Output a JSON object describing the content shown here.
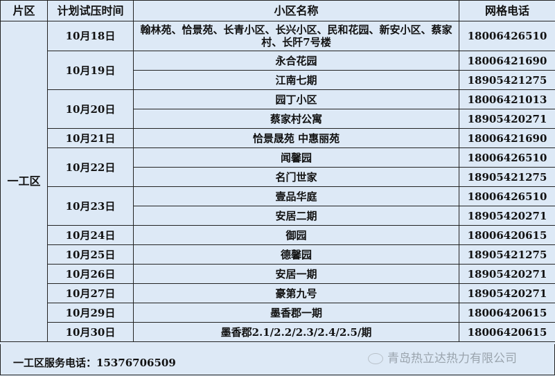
{
  "headers": {
    "zone": "片区",
    "date": "计划试压时间",
    "community": "小区名称",
    "phone": "网格电话"
  },
  "zone": "一工区",
  "groups": [
    {
      "date": "10月18日",
      "rows": [
        {
          "community": "翰林苑、恰景苑、长青小区、长兴小区、民和花园、新安小区、蔡家村、长阡7号楼",
          "phone": "18006426510"
        }
      ]
    },
    {
      "date": "10月19日",
      "rows": [
        {
          "community": "永合花园",
          "phone": "18006421690"
        },
        {
          "community": "江南七期",
          "phone": "18905421275"
        }
      ]
    },
    {
      "date": "10月20日",
      "rows": [
        {
          "community": "园丁小区",
          "phone": "18006421013"
        },
        {
          "community": "蔡家村公寓",
          "phone": "18905420271"
        }
      ]
    },
    {
      "date": "10月21日",
      "rows": [
        {
          "community": "恰景晟苑 中惠丽苑",
          "phone": "18006421690"
        }
      ]
    },
    {
      "date": "10月22日",
      "rows": [
        {
          "community": "闻馨园",
          "phone": "18006426510"
        },
        {
          "community": "名门世家",
          "phone": "18905421275"
        }
      ]
    },
    {
      "date": "10月23日",
      "rows": [
        {
          "community": "壹品华庭",
          "phone": "18006426510"
        },
        {
          "community": "安居二期",
          "phone": "18905420271"
        }
      ]
    },
    {
      "date": "10月24日",
      "rows": [
        {
          "community": "御园",
          "phone": "18006420615"
        }
      ]
    },
    {
      "date": "10月25日",
      "rows": [
        {
          "community": "德馨园",
          "phone": "18905421275"
        }
      ]
    },
    {
      "date": "10月26日",
      "rows": [
        {
          "community": "安居一期",
          "phone": "18905420271"
        }
      ]
    },
    {
      "date": "10月27日",
      "rows": [
        {
          "community": "豪第九号",
          "phone": "18905420271"
        }
      ]
    },
    {
      "date": "10月29日",
      "rows": [
        {
          "community": "墨香郡一期",
          "phone": "18006420615"
        }
      ]
    },
    {
      "date": "10月30日",
      "rows": [
        {
          "community": "墨香郡2.1/2.2/2.3/2.4/2.5/期",
          "phone": "18006420615"
        }
      ]
    }
  ],
  "footer": {
    "service": "一工区服务电话：15376706509",
    "watermark": "青岛热立达热力有限公司"
  },
  "colors": {
    "background": "#dde9f6",
    "border": "#222222"
  }
}
